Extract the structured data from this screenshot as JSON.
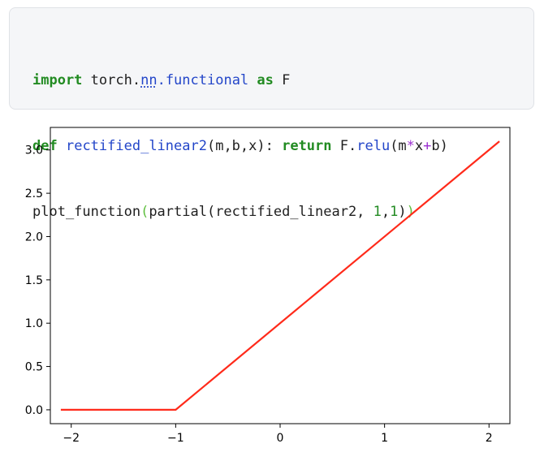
{
  "code": {
    "line1": {
      "kw_import": "import",
      "mod_prefix": " torch.",
      "mod_nn": "nn",
      "mod_dot": ".",
      "mod_functional": "functional",
      "space1": " ",
      "kw_as": "as",
      "alias": " F"
    },
    "line2": {
      "kw_def": "def",
      "space": " ",
      "fn_name": "rectified_linear2",
      "params": "(m,b,x): ",
      "kw_return": "return",
      "obj": " F.",
      "fn_relu": "relu",
      "open": "(m",
      "op_mul": "*",
      "x": "x",
      "op_add": "+",
      "close": "b)"
    },
    "line3": {
      "call": "plot_function",
      "paren_open": "(",
      "inner": "partial(rectified_linear2, ",
      "arg1": "1",
      "comma": ",",
      "arg2": "1",
      "inner_close": ")",
      "paren_close": ")"
    }
  },
  "chart_data": {
    "type": "line",
    "title": "",
    "xlabel": "",
    "ylabel": "",
    "xlim": [
      -2.2,
      2.2
    ],
    "ylim": [
      -0.16,
      3.26
    ],
    "xticks": [
      -2,
      -1,
      0,
      1,
      2
    ],
    "xtick_labels": [
      "−2",
      "−1",
      "0",
      "1",
      "2"
    ],
    "yticks": [
      0.0,
      0.5,
      1.0,
      1.5,
      2.0,
      2.5,
      3.0
    ],
    "ytick_labels": [
      "0.0",
      "0.5",
      "1.0",
      "1.5",
      "2.0",
      "2.5",
      "3.0"
    ],
    "grid": false,
    "series": [
      {
        "color": "#ff2a1a",
        "x": [
          -2.1,
          -1.0,
          2.1
        ],
        "y": [
          0.0,
          0.0,
          3.1
        ]
      }
    ]
  }
}
